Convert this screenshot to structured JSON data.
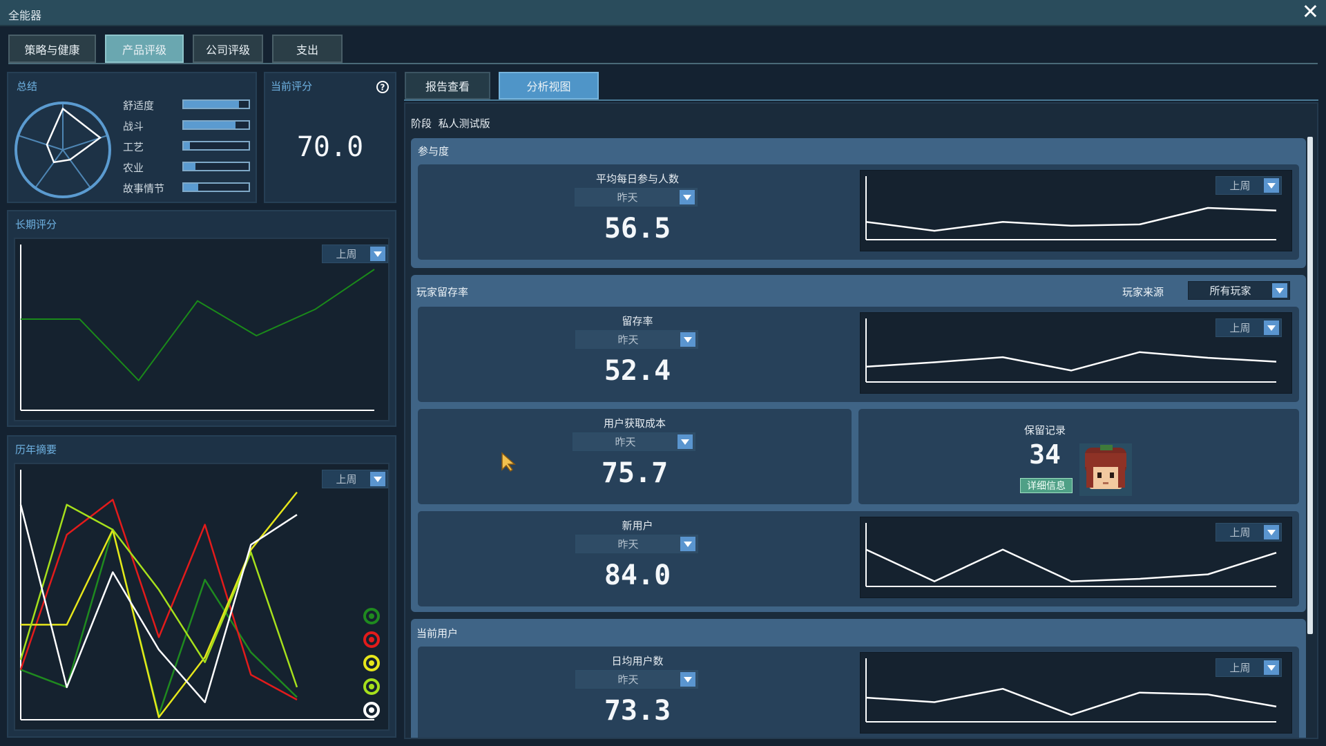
{
  "window": {
    "title": "全能器"
  },
  "main_tabs": [
    {
      "label": "策略与健康"
    },
    {
      "label": "产品评级"
    },
    {
      "label": "公司评级"
    },
    {
      "label": "支出"
    }
  ],
  "summary": {
    "title": "总结",
    "bars": [
      {
        "label": "舒适度",
        "value": 0.85
      },
      {
        "label": "战斗",
        "value": 0.8
      },
      {
        "label": "工艺",
        "value": 0.1
      },
      {
        "label": "农业",
        "value": 0.18
      },
      {
        "label": "故事情节",
        "value": 0.22
      }
    ]
  },
  "current_score": {
    "title": "当前评分",
    "value": "70.0",
    "help_icon": "question-circle-icon"
  },
  "long_term": {
    "title": "长期评分",
    "period": "上周",
    "chart_data": {
      "type": "line",
      "series": [
        {
          "values": [
            55,
            55,
            18,
            66,
            45,
            61,
            85
          ],
          "color": "#1a8a1a"
        }
      ],
      "ylim": [
        0,
        100
      ],
      "grid": false
    }
  },
  "history": {
    "title": "历年摘要",
    "period": "上周",
    "chart_data": {
      "type": "line",
      "series": [
        {
          "color": "#1f8a1f",
          "values": [
            20,
            13,
            76,
            2,
            56,
            27,
            9
          ]
        },
        {
          "color": "#e31b1b",
          "values": [
            20,
            74,
            88,
            33,
            78,
            18,
            8
          ]
        },
        {
          "color": "#e6e61b",
          "values": [
            38,
            38,
            76,
            1,
            25,
            68,
            91
          ]
        },
        {
          "color": "#a6e01c",
          "values": [
            24,
            86,
            76,
            52,
            23,
            67,
            13
          ]
        },
        {
          "color": "#ffffff",
          "values": [
            86,
            13,
            59,
            28,
            7,
            70,
            82
          ]
        }
      ],
      "ylim": [
        0,
        100
      ],
      "grid": false
    }
  },
  "sub_tabs": [
    {
      "label": "报告查看"
    },
    {
      "label": "分析视图"
    }
  ],
  "stage": {
    "label": "阶段",
    "value": "私人测试版"
  },
  "engagement": {
    "title": "参与度",
    "metric": {
      "label": "平均每日参与人数",
      "period": "昨天",
      "value": "56.5",
      "chart_period": "上周",
      "chart_data": {
        "type": "line",
        "series": [
          {
            "values": [
              28,
              14,
              28,
              22,
              24,
              50,
              46
            ],
            "color": "#ffffff"
          }
        ],
        "ylim": [
          0,
          100
        ]
      }
    }
  },
  "retention": {
    "title": "玩家留存率",
    "source_label": "玩家来源",
    "source_value": "所有玩家",
    "retention": {
      "label": "留存率",
      "period": "昨天",
      "value": "52.4",
      "chart_period": "上周",
      "chart_data": {
        "type": "line",
        "series": [
          {
            "values": [
              24,
              31,
              39,
              18,
              47,
              38,
              32
            ],
            "color": "#ffffff"
          }
        ],
        "ylim": [
          0,
          100
        ]
      }
    },
    "cac": {
      "label": "用户获取成本",
      "period": "昨天",
      "value": "75.7"
    },
    "records": {
      "label": "保留记录",
      "value": "34",
      "button": "详细信息"
    },
    "new_users": {
      "label": "新用户",
      "period": "昨天",
      "value": "84.0",
      "chart_period": "上周",
      "chart_data": {
        "type": "line",
        "series": [
          {
            "values": [
              58,
              8,
              58,
              8,
              12,
              19,
              53
            ],
            "color": "#ffffff"
          }
        ],
        "ylim": [
          0,
          100
        ]
      }
    }
  },
  "current_users": {
    "title": "当前用户",
    "dau": {
      "label": "日均用户数",
      "period": "昨天",
      "value": "73.3",
      "chart_period": "上周",
      "chart_data": {
        "type": "line",
        "series": [
          {
            "values": [
              38,
              31,
              52,
              11,
              46,
              43,
              24
            ],
            "color": "#ffffff"
          }
        ],
        "ylim": [
          0,
          100
        ]
      }
    }
  },
  "colors": {
    "accent": "#6fb2e2",
    "tab_active": "#6aa7b0",
    "subtab_active": "#4f95c8",
    "section": "#3f6486"
  }
}
